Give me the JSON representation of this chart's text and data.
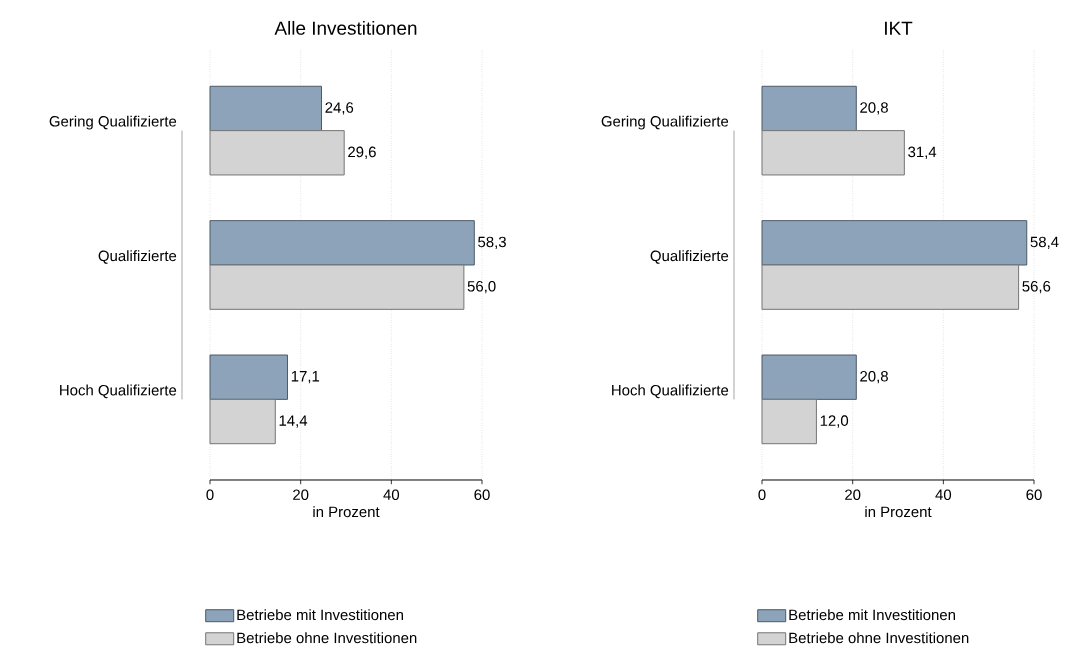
{
  "chart_data": [
    {
      "type": "bar",
      "orientation": "horizontal",
      "title": "Alle Investitionen",
      "xlabel": "in Prozent",
      "categories": [
        "Gering Qualifizierte",
        "Qualifizierte",
        "Hoch Qualifizierte"
      ],
      "xlim": [
        0,
        60
      ],
      "xticks": [
        0,
        20,
        40,
        60
      ],
      "grid": "x",
      "legend": "bottom",
      "series": [
        {
          "name": "Betriebe mit Investitionen",
          "color": "#8ca3b9",
          "values": [
            24.6,
            58.3,
            17.1
          ],
          "value_labels": [
            "24,6",
            "58,3",
            "17,1"
          ]
        },
        {
          "name": "Betriebe ohne Investitionen",
          "color": "#d3d3d3",
          "values": [
            29.6,
            56.0,
            14.4
          ],
          "value_labels": [
            "29,6",
            "56,0",
            "14,4"
          ]
        }
      ]
    },
    {
      "type": "bar",
      "orientation": "horizontal",
      "title": "IKT",
      "xlabel": "in Prozent",
      "categories": [
        "Gering Qualifizierte",
        "Qualifizierte",
        "Hoch Qualifizierte"
      ],
      "xlim": [
        0,
        60
      ],
      "xticks": [
        0,
        20,
        40,
        60
      ],
      "grid": "x",
      "legend": "bottom",
      "series": [
        {
          "name": "Betriebe mit Investitionen",
          "color": "#8ca3b9",
          "values": [
            20.8,
            58.4,
            20.8
          ],
          "value_labels": [
            "20,8",
            "58,4",
            "20,8"
          ]
        },
        {
          "name": "Betriebe ohne Investitionen",
          "color": "#d3d3d3",
          "values": [
            31.4,
            56.6,
            12.0
          ],
          "value_labels": [
            "31,4",
            "56,6",
            "12,0"
          ]
        }
      ]
    }
  ]
}
